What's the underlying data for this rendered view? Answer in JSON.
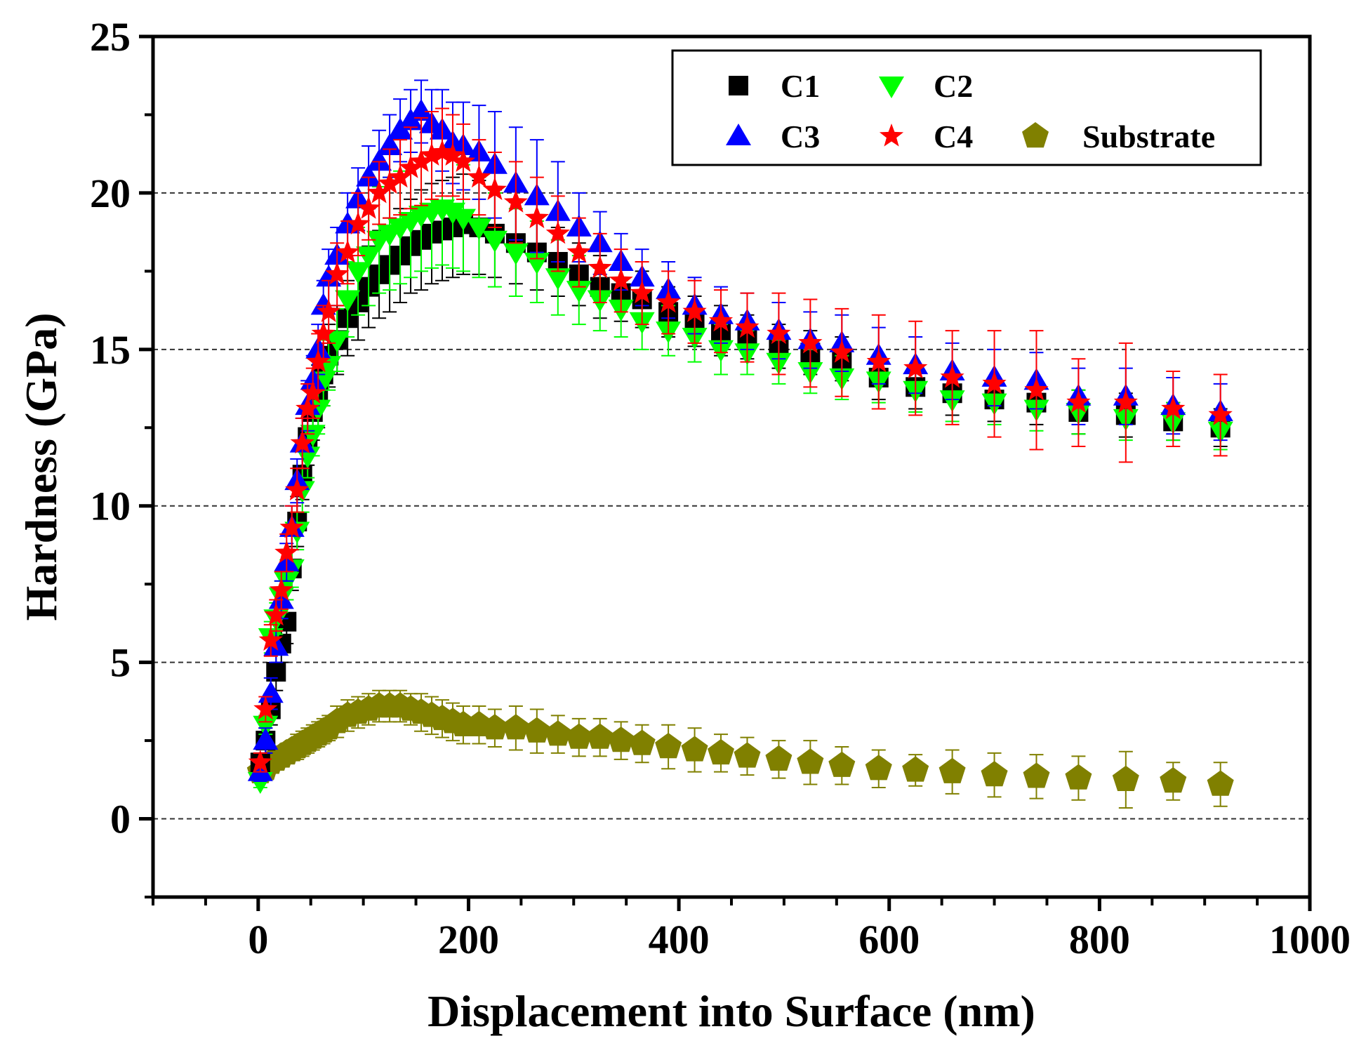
{
  "chart_data": {
    "type": "scatter",
    "title": "",
    "xlabel": "Displacement into Surface (nm)",
    "ylabel": "Hardness (GPa)",
    "xlim": [
      -100,
      1000
    ],
    "ylim": [
      -2.5,
      25
    ],
    "xticks": [
      0,
      200,
      400,
      600,
      800,
      1000
    ],
    "yticks": [
      0,
      5,
      10,
      15,
      20,
      25
    ],
    "xtick_labels": [
      "0",
      "200",
      "400",
      "600",
      "800",
      "1000"
    ],
    "ytick_labels": [
      "0",
      "5",
      "10",
      "15",
      "20",
      "25"
    ],
    "grid": "horizontal dashed at major y ticks",
    "legend_position": "top-right",
    "series": [
      {
        "name": "C1",
        "marker": "square",
        "color": "#000000",
        "x": [
          2,
          7,
          12,
          17,
          22,
          27,
          32,
          37,
          42,
          47,
          52,
          57,
          62,
          67,
          75,
          85,
          95,
          105,
          115,
          125,
          135,
          145,
          155,
          165,
          175,
          185,
          195,
          210,
          225,
          245,
          265,
          285,
          305,
          325,
          345,
          365,
          390,
          415,
          440,
          465,
          495,
          525,
          555,
          590,
          625,
          660,
          700,
          740,
          780,
          825,
          870,
          915
        ],
        "y": [
          1.8,
          2.5,
          3.5,
          4.7,
          5.6,
          6.3,
          8.0,
          9.5,
          11.0,
          12.2,
          13.0,
          13.5,
          14.2,
          14.8,
          15.3,
          16.0,
          16.5,
          17.0,
          17.4,
          17.7,
          18.0,
          18.3,
          18.5,
          18.7,
          18.8,
          18.9,
          19.0,
          18.9,
          18.7,
          18.4,
          18.1,
          17.8,
          17.4,
          17.0,
          16.8,
          16.6,
          16.2,
          15.9,
          15.6,
          15.4,
          15.1,
          14.9,
          14.7,
          14.1,
          13.8,
          13.6,
          13.4,
          13.3,
          13.0,
          12.9,
          12.7,
          12.5
        ],
        "err": [
          0.3,
          0.4,
          0.5,
          0.6,
          0.6,
          0.7,
          0.7,
          0.8,
          0.8,
          0.9,
          0.9,
          1.0,
          1.0,
          1.0,
          1.1,
          1.2,
          1.2,
          1.3,
          1.4,
          1.5,
          1.5,
          1.5,
          1.6,
          1.6,
          1.6,
          1.6,
          1.6,
          1.5,
          1.4,
          1.3,
          1.2,
          1.1,
          1.0,
          1.0,
          0.9,
          0.9,
          0.8,
          0.8,
          0.8,
          0.7,
          0.7,
          0.7,
          0.7,
          0.7,
          0.7,
          0.7,
          0.7,
          0.7,
          0.7,
          0.7,
          0.6,
          0.6
        ]
      },
      {
        "name": "C2",
        "marker": "triangle-down",
        "color": "#00ff00",
        "x": [
          2,
          7,
          12,
          17,
          22,
          27,
          32,
          37,
          42,
          47,
          52,
          57,
          62,
          67,
          75,
          85,
          95,
          105,
          115,
          125,
          135,
          145,
          155,
          165,
          175,
          185,
          195,
          210,
          225,
          245,
          265,
          285,
          305,
          325,
          345,
          365,
          390,
          415,
          440,
          465,
          495,
          525,
          555,
          590,
          625,
          660,
          700,
          740,
          780,
          825,
          870,
          915
        ],
        "y": [
          1.2,
          3.0,
          5.8,
          6.4,
          7.1,
          7.6,
          8.0,
          9.2,
          10.5,
          11.6,
          12.3,
          13.1,
          14.0,
          14.5,
          15.3,
          16.6,
          17.5,
          18.0,
          18.5,
          18.7,
          18.9,
          19.1,
          19.3,
          19.4,
          19.5,
          19.4,
          19.2,
          18.9,
          18.5,
          18.1,
          17.8,
          17.3,
          16.9,
          16.6,
          16.3,
          15.9,
          15.6,
          15.4,
          15.0,
          14.9,
          14.6,
          14.3,
          14.1,
          14.0,
          13.7,
          13.4,
          13.3,
          13.1,
          13.0,
          12.8,
          12.7,
          12.4
        ],
        "err": [
          0.2,
          0.3,
          0.5,
          0.5,
          0.5,
          0.6,
          0.6,
          0.6,
          0.7,
          0.7,
          0.7,
          0.8,
          0.8,
          0.8,
          1.0,
          1.2,
          1.4,
          1.6,
          1.7,
          1.8,
          1.8,
          1.8,
          1.8,
          1.8,
          1.8,
          1.8,
          1.7,
          1.6,
          1.5,
          1.4,
          1.3,
          1.2,
          1.1,
          1.0,
          0.9,
          0.9,
          0.8,
          0.8,
          0.8,
          0.7,
          0.7,
          0.7,
          0.7,
          0.7,
          0.7,
          0.7,
          0.7,
          0.7,
          0.7,
          0.7,
          0.6,
          0.6
        ]
      },
      {
        "name": "C3",
        "marker": "triangle-up",
        "color": "#0000ff",
        "x": [
          2,
          7,
          12,
          17,
          22,
          27,
          32,
          37,
          42,
          47,
          52,
          57,
          62,
          67,
          75,
          85,
          95,
          105,
          115,
          125,
          135,
          145,
          155,
          165,
          175,
          185,
          195,
          210,
          225,
          245,
          265,
          285,
          305,
          325,
          345,
          365,
          390,
          415,
          440,
          465,
          495,
          525,
          555,
          590,
          625,
          660,
          700,
          740,
          780,
          825,
          870,
          915
        ],
        "y": [
          1.5,
          2.5,
          4.0,
          5.5,
          7.0,
          8.2,
          9.3,
          10.8,
          12.0,
          13.2,
          14.0,
          15.0,
          16.4,
          17.3,
          18.0,
          19.0,
          19.8,
          20.5,
          21.0,
          21.5,
          22.0,
          22.3,
          22.6,
          22.2,
          22.0,
          21.6,
          21.5,
          21.3,
          20.9,
          20.3,
          19.9,
          19.4,
          18.9,
          18.4,
          17.8,
          17.3,
          16.9,
          16.4,
          16.1,
          15.9,
          15.6,
          15.3,
          15.2,
          14.8,
          14.5,
          14.3,
          14.1,
          14.0,
          13.5,
          13.5,
          13.2,
          13.0
        ],
        "err": [
          0.3,
          0.4,
          0.5,
          0.5,
          0.6,
          0.6,
          0.7,
          0.7,
          0.8,
          0.8,
          0.8,
          0.8,
          0.8,
          0.9,
          0.9,
          1.0,
          1.0,
          1.0,
          1.0,
          1.0,
          1.0,
          1.0,
          1.0,
          1.1,
          1.3,
          1.3,
          1.4,
          1.5,
          1.7,
          1.8,
          1.8,
          1.6,
          1.1,
          1.0,
          0.9,
          0.9,
          0.9,
          0.9,
          0.9,
          0.9,
          0.9,
          0.9,
          0.9,
          0.9,
          0.9,
          0.9,
          0.9,
          0.9,
          0.9,
          0.9,
          0.9,
          0.9
        ]
      },
      {
        "name": "C4",
        "marker": "star",
        "color": "#ff0000",
        "x": [
          2,
          7,
          12,
          17,
          22,
          27,
          32,
          37,
          42,
          47,
          52,
          57,
          62,
          67,
          75,
          85,
          95,
          105,
          115,
          125,
          135,
          145,
          155,
          165,
          175,
          185,
          195,
          210,
          225,
          245,
          265,
          285,
          305,
          325,
          345,
          365,
          390,
          415,
          440,
          465,
          495,
          525,
          555,
          590,
          625,
          660,
          700,
          740,
          780,
          825,
          870,
          915
        ],
        "y": [
          1.8,
          3.5,
          5.7,
          6.5,
          7.3,
          8.5,
          9.3,
          10.5,
          12.0,
          13.1,
          13.6,
          14.6,
          15.5,
          16.2,
          17.4,
          18.1,
          19.0,
          19.5,
          20.0,
          20.3,
          20.5,
          20.8,
          21.0,
          21.2,
          21.3,
          21.2,
          21.0,
          20.5,
          20.1,
          19.7,
          19.2,
          18.7,
          18.1,
          17.6,
          17.2,
          16.8,
          16.5,
          16.2,
          15.9,
          15.7,
          15.5,
          15.2,
          14.9,
          14.6,
          14.4,
          14.1,
          13.9,
          13.7,
          13.3,
          13.3,
          13.1,
          12.9
        ],
        "err": [
          0.3,
          0.4,
          0.5,
          0.5,
          0.6,
          0.6,
          0.7,
          0.7,
          0.8,
          0.8,
          0.8,
          0.9,
          0.9,
          1.0,
          1.0,
          1.0,
          1.0,
          1.0,
          1.0,
          1.1,
          1.2,
          1.3,
          1.4,
          1.4,
          1.4,
          1.3,
          1.2,
          1.2,
          1.2,
          1.3,
          1.3,
          1.2,
          1.1,
          1.1,
          1.0,
          1.0,
          1.0,
          1.0,
          1.0,
          1.1,
          1.3,
          1.4,
          1.4,
          1.5,
          1.5,
          1.5,
          1.7,
          1.9,
          1.4,
          1.9,
          1.2,
          1.3
        ]
      },
      {
        "name": "Substrate",
        "marker": "pentagon",
        "color": "#808000",
        "x": [
          2,
          7,
          12,
          17,
          22,
          27,
          32,
          37,
          42,
          47,
          52,
          57,
          62,
          67,
          75,
          85,
          95,
          105,
          115,
          125,
          135,
          145,
          155,
          165,
          175,
          185,
          195,
          210,
          225,
          245,
          265,
          285,
          305,
          325,
          345,
          365,
          390,
          415,
          440,
          465,
          495,
          525,
          555,
          590,
          625,
          660,
          700,
          740,
          780,
          825,
          870,
          915
        ],
        "y": [
          1.5,
          1.6,
          1.8,
          1.9,
          2.0,
          2.1,
          2.2,
          2.3,
          2.4,
          2.5,
          2.6,
          2.7,
          2.8,
          2.9,
          3.1,
          3.3,
          3.4,
          3.5,
          3.6,
          3.6,
          3.6,
          3.5,
          3.4,
          3.3,
          3.2,
          3.1,
          3.0,
          3.0,
          2.9,
          2.9,
          2.8,
          2.7,
          2.6,
          2.6,
          2.5,
          2.4,
          2.3,
          2.2,
          2.1,
          2.0,
          1.9,
          1.8,
          1.7,
          1.6,
          1.55,
          1.5,
          1.4,
          1.35,
          1.3,
          1.25,
          1.2,
          1.1
        ],
        "err": [
          0.2,
          0.2,
          0.3,
          0.3,
          0.3,
          0.3,
          0.3,
          0.4,
          0.4,
          0.4,
          0.4,
          0.4,
          0.4,
          0.4,
          0.5,
          0.5,
          0.5,
          0.5,
          0.5,
          0.5,
          0.5,
          0.5,
          0.6,
          0.6,
          0.6,
          0.6,
          0.6,
          0.6,
          0.6,
          0.7,
          0.7,
          0.6,
          0.6,
          0.6,
          0.6,
          0.6,
          0.7,
          0.7,
          0.6,
          0.6,
          0.6,
          0.7,
          0.6,
          0.6,
          0.5,
          0.7,
          0.7,
          0.7,
          0.7,
          0.9,
          0.6,
          0.7
        ]
      }
    ]
  }
}
